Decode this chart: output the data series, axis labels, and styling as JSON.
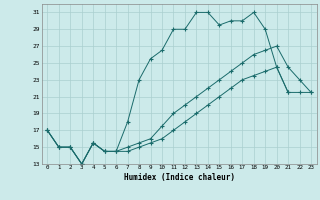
{
  "xlabel": "Humidex (Indice chaleur)",
  "background_color": "#cceaea",
  "grid_color": "#aacfcf",
  "line_color": "#1a6b6b",
  "xlim": [
    -0.5,
    23.5
  ],
  "ylim": [
    13,
    32
  ],
  "yticks": [
    13,
    15,
    17,
    19,
    21,
    23,
    25,
    27,
    29,
    31
  ],
  "xticks": [
    0,
    1,
    2,
    3,
    4,
    5,
    6,
    7,
    8,
    9,
    10,
    11,
    12,
    13,
    14,
    15,
    16,
    17,
    18,
    19,
    20,
    21,
    22,
    23
  ],
  "line1_x": [
    0,
    1,
    2,
    3,
    4,
    5,
    6,
    7,
    8,
    9,
    10,
    11,
    12,
    13,
    14,
    15,
    16,
    17,
    18,
    19,
    20,
    21
  ],
  "line1_y": [
    17,
    15,
    15,
    13,
    15.5,
    14.5,
    14.5,
    18,
    23,
    25.5,
    26.5,
    29,
    29,
    31,
    31,
    29.5,
    30,
    30,
    31,
    29,
    24.5,
    21.5
  ],
  "line2_x": [
    0,
    1,
    2,
    3,
    4,
    5,
    6,
    7,
    8,
    9,
    10,
    11,
    12,
    13,
    14,
    15,
    16,
    17,
    18,
    19,
    20,
    21,
    22,
    23
  ],
  "line2_y": [
    17,
    15,
    15,
    13,
    15.5,
    14.5,
    14.5,
    15,
    15.5,
    16,
    17.5,
    19,
    20,
    21,
    22,
    23,
    24,
    25,
    26,
    26.5,
    27,
    24.5,
    23,
    21.5
  ],
  "line3_x": [
    0,
    1,
    2,
    3,
    4,
    5,
    6,
    7,
    8,
    9,
    10,
    11,
    12,
    13,
    14,
    15,
    16,
    17,
    18,
    19,
    20,
    21,
    22,
    23
  ],
  "line3_y": [
    17,
    15,
    15,
    13,
    15.5,
    14.5,
    14.5,
    14.5,
    15,
    15.5,
    16,
    17,
    18,
    19,
    20,
    21,
    22,
    23,
    23.5,
    24,
    24.5,
    21.5,
    21.5,
    21.5
  ]
}
